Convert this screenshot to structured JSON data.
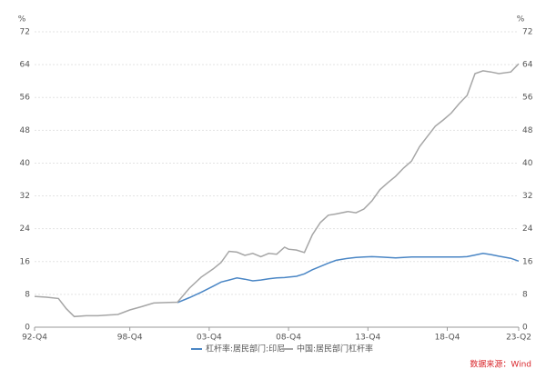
{
  "chart_data": {
    "type": "line",
    "y_unit": "%",
    "y2_unit": "%",
    "x": [
      1992.75,
      1993.5,
      1994.25,
      1994.75,
      1995.25,
      1996,
      1996.75,
      1997.5,
      1998,
      1998.75,
      1999.5,
      2000.25,
      2001,
      2001.75,
      2002.5,
      2003.25,
      2004,
      2004.5,
      2005,
      2005.5,
      2006,
      2006.5,
      2007,
      2007.5,
      2008,
      2008.5,
      2008.75,
      2009.25,
      2009.75,
      2010.25,
      2010.75,
      2011.25,
      2011.75,
      2012.5,
      2013,
      2013.5,
      2014,
      2014.5,
      2015,
      2015.5,
      2016,
      2016.5,
      2017,
      2017.5,
      2018,
      2018.5,
      2019,
      2019.5,
      2020,
      2020.5,
      2021,
      2021.5,
      2022,
      2022.75,
      2023.25
    ],
    "series": [
      {
        "name": "杠杆率:居民部门:印尼",
        "color": "#4a86c5",
        "values": [
          null,
          null,
          null,
          null,
          null,
          null,
          null,
          null,
          null,
          null,
          null,
          null,
          null,
          6,
          7.2,
          8.5,
          10,
          11,
          11.5,
          12,
          11.7,
          11.3,
          11.5,
          11.8,
          12,
          12.1,
          12.2,
          12.4,
          13,
          14,
          14.8,
          15.6,
          16.3,
          16.8,
          17,
          17.1,
          17.2,
          17.1,
          17,
          16.9,
          17,
          17.1,
          17.1,
          17.1,
          17.1,
          17.1,
          17.1,
          17.1,
          17.2,
          17.6,
          18,
          17.7,
          17.3,
          16.8,
          16.1
        ]
      },
      {
        "name": "中国:居民部门杠杆率",
        "color": "#a6a6a6",
        "values": [
          7.5,
          7.3,
          7,
          4.5,
          2.6,
          2.8,
          2.8,
          3,
          3.1,
          4.2,
          5,
          5.9,
          6,
          6.1,
          9.5,
          12.2,
          14.2,
          15.8,
          18.5,
          18.3,
          17.5,
          18,
          17.2,
          18,
          17.8,
          19.5,
          19,
          18.8,
          18.2,
          22.5,
          25.5,
          27.3,
          27.6,
          28.2,
          27.9,
          28.8,
          30.8,
          33.5,
          35.2,
          36.8,
          38.8,
          40.5,
          44,
          46.5,
          49,
          50.5,
          52.2,
          54.5,
          56.5,
          61.8,
          62.5,
          62.2,
          61.8,
          62.2,
          64.2
        ]
      }
    ],
    "xlim": [
      1992.75,
      2023.25
    ],
    "xticks": [
      {
        "value": 1992.75,
        "label": "92-Q4"
      },
      {
        "value": 1998.75,
        "label": "98-Q4"
      },
      {
        "value": 2003.75,
        "label": "03-Q4"
      },
      {
        "value": 2008.75,
        "label": "08-Q4"
      },
      {
        "value": 2013.75,
        "label": "13-Q4"
      },
      {
        "value": 2018.75,
        "label": "18-Q4"
      },
      {
        "value": 2023.25,
        "label": "23-Q2"
      }
    ],
    "ylim": [
      0,
      72
    ],
    "yticks": [
      0,
      8,
      16,
      24,
      32,
      40,
      48,
      56,
      64,
      72
    ],
    "y2lim": [
      0,
      72
    ],
    "y2ticks": [
      0,
      8,
      16,
      24,
      32,
      40,
      48,
      56,
      64,
      72
    ],
    "grid": true,
    "legend": "bottom",
    "source": "数据来源：Wind",
    "source_color": "#d9262b"
  }
}
